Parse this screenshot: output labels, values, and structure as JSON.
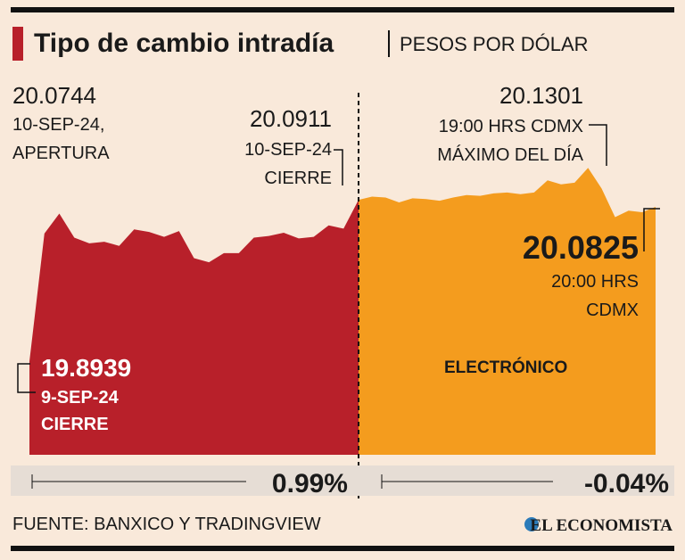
{
  "chart_data": {
    "type": "area",
    "title": "Tipo de cambio intradía",
    "subtitle": "PESOS POR DÓLAR",
    "ylim": [
      19.78,
      20.15
    ],
    "series": [
      {
        "color": "#b8202a",
        "values": [
          19.8939,
          20.05,
          20.0744,
          20.045,
          20.038,
          20.04,
          20.035,
          20.055,
          20.052,
          20.046,
          20.053,
          20.02,
          20.015,
          20.026,
          20.026,
          20.045,
          20.047,
          20.051,
          20.044,
          20.046,
          20.06,
          20.056,
          20.0911
        ]
      },
      {
        "name": "ELECTRÓNICO",
        "color": "#f49c1e",
        "values": [
          20.0911,
          20.095,
          20.094,
          20.088,
          20.093,
          20.092,
          20.09,
          20.094,
          20.097,
          20.096,
          20.099,
          20.1,
          20.098,
          20.1,
          20.115,
          20.11,
          20.112,
          20.1301,
          20.105,
          20.07,
          20.078,
          20.076,
          20.0825
        ]
      }
    ],
    "annotations": {
      "open": {
        "value": "20.0744",
        "lines": [
          "10-SEP-24,",
          "APERTURA"
        ]
      },
      "close": {
        "value": "20.0911",
        "lines": [
          "10-SEP-24",
          "CIERRE"
        ]
      },
      "max": {
        "value": "20.1301",
        "lines": [
          "19:00 HRS CDMX",
          "MÁXIMO DEL DÍA"
        ]
      },
      "last": {
        "value": "20.0825",
        "lines": [
          "20:00 HRS",
          "CDMX"
        ]
      },
      "prev": {
        "value": "19.8939",
        "lines": [
          "9-SEP-24",
          "CIERRE"
        ]
      }
    },
    "changes": [
      "0.99%",
      "-0.04%"
    ],
    "source": "FUENTE: BANXICO Y TRADINGVIEW",
    "brand": "EL ECONOMISTA"
  }
}
